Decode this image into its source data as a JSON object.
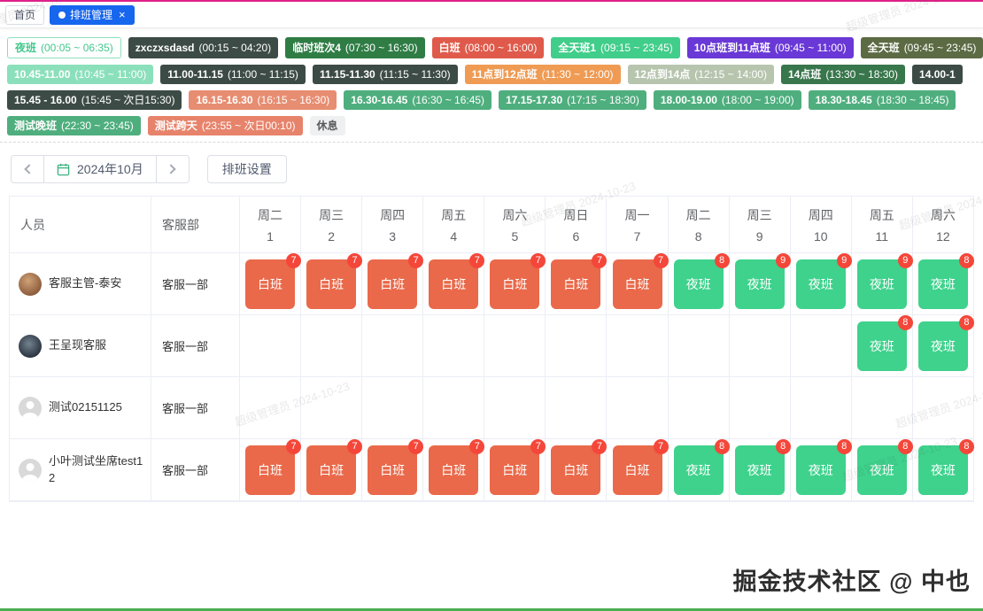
{
  "colors": {
    "accent_top": "#e0218a",
    "accent_bottom": "#4bae4f",
    "active_tab": "#1766ee",
    "day_shift_bg": "#e9694a",
    "night_shift_bg": "#3ed28c",
    "count_badge_bg": "#f4473a"
  },
  "icons": {
    "close": "×"
  },
  "tabs": [
    {
      "label": "首页"
    },
    {
      "label": "排班管理"
    }
  ],
  "shift_legend": {
    "rows": [
      [
        {
          "name": "夜班",
          "time": "(00:05 ~ 06:35)",
          "bg": "#ffffff",
          "fg": "#42c98c",
          "border": "#8ce0bb"
        },
        {
          "name": "zxczxsdasd",
          "time": "(00:15 ~ 04:20)",
          "bg": "#3d4b46",
          "fg": "#ffffff"
        },
        {
          "name": "临时班次4",
          "time": "(07:30 ~ 16:30)",
          "bg": "#2f7d45",
          "fg": "#ffffff"
        },
        {
          "name": "白班",
          "time": "(08:00 ~ 16:00)",
          "bg": "#df5a4b",
          "fg": "#ffffff"
        },
        {
          "name": "全天班1",
          "time": "(09:15 ~ 23:45)",
          "bg": "#41cd8a",
          "fg": "#ffffff"
        },
        {
          "name": "10点班到11点班",
          "time": "(09:45 ~ 11:00)",
          "bg": "#6a38d6",
          "fg": "#ffffff"
        },
        {
          "name": "全天班",
          "time": "(09:45 ~ 23:45)",
          "bg": "#5c6b44",
          "fg": "#ffffff"
        }
      ],
      [
        {
          "name": "10.45-11.00",
          "time": "(10:45 ~ 11:00)",
          "bg": "#8be0bb",
          "fg": "#ffffff"
        },
        {
          "name": "11.00-11.15",
          "time": "(11:00 ~ 11:15)",
          "bg": "#3d4b46",
          "fg": "#ffffff"
        },
        {
          "name": "11.15-11.30",
          "time": "(11:15 ~ 11:30)",
          "bg": "#3d4b46",
          "fg": "#ffffff"
        },
        {
          "name": "11点到12点班",
          "time": "(11:30 ~ 12:00)",
          "bg": "#ef9b54",
          "fg": "#ffffff"
        },
        {
          "name": "12点到14点",
          "time": "(12:15 ~ 14:00)",
          "bg": "#b7c5ae",
          "fg": "#ffffff"
        },
        {
          "name": "14点班",
          "time": "(13:30 ~ 18:30)",
          "bg": "#38764b",
          "fg": "#ffffff"
        },
        {
          "name": "14.00-1",
          "time": "",
          "bg": "#3d4b46",
          "fg": "#ffffff"
        }
      ],
      [
        {
          "name": "15.45 - 16.00",
          "time": "(15:45 ~ 次日15:30)",
          "bg": "#3d4b46",
          "fg": "#ffffff"
        },
        {
          "name": "16.15-16.30",
          "time": "(16:15 ~ 16:30)",
          "bg": "#e78d71",
          "fg": "#ffffff"
        },
        {
          "name": "16.30-16.45",
          "time": "(16:30 ~ 16:45)",
          "bg": "#4fae7e",
          "fg": "#ffffff"
        },
        {
          "name": "17.15-17.30",
          "time": "(17:15 ~ 18:30)",
          "bg": "#4fae7e",
          "fg": "#ffffff"
        },
        {
          "name": "18.00-19.00",
          "time": "(18:00 ~ 19:00)",
          "bg": "#4fae7e",
          "fg": "#ffffff"
        },
        {
          "name": "18.30-18.45",
          "time": "(18:30 ~ 18:45)",
          "bg": "#4fae7e",
          "fg": "#ffffff"
        }
      ],
      [
        {
          "name": "测试晚班",
          "time": "(22:30 ~ 23:45)",
          "bg": "#4fae7e",
          "fg": "#ffffff"
        },
        {
          "name": "测试跨天",
          "time": "(23:55 ~ 次日00:10)",
          "bg": "#e7836b",
          "fg": "#ffffff"
        },
        {
          "name": "休息",
          "time": "",
          "bg": "#eef0f2",
          "fg": "#5a5a5a"
        }
      ]
    ]
  },
  "toolbar": {
    "month": "2024年10月",
    "settings": "排班设置"
  },
  "schedule": {
    "person_header": "人员",
    "department_header": "客服部",
    "days": [
      {
        "weekday": "周二",
        "date": "1"
      },
      {
        "weekday": "周三",
        "date": "2"
      },
      {
        "weekday": "周四",
        "date": "3"
      },
      {
        "weekday": "周五",
        "date": "4"
      },
      {
        "weekday": "周六",
        "date": "5"
      },
      {
        "weekday": "周日",
        "date": "6"
      },
      {
        "weekday": "周一",
        "date": "7"
      },
      {
        "weekday": "周二",
        "date": "8"
      },
      {
        "weekday": "周三",
        "date": "9"
      },
      {
        "weekday": "周四",
        "date": "10"
      },
      {
        "weekday": "周五",
        "date": "11"
      },
      {
        "weekday": "周六",
        "date": "12"
      }
    ],
    "rows": [
      {
        "name": "客服主管-泰安",
        "department": "客服一部",
        "avatar": "photo-a",
        "shifts": [
          {
            "label": "白班",
            "type": "day",
            "count": "7"
          },
          {
            "label": "白班",
            "type": "day",
            "count": "7"
          },
          {
            "label": "白班",
            "type": "day",
            "count": "7"
          },
          {
            "label": "白班",
            "type": "day",
            "count": "7"
          },
          {
            "label": "白班",
            "type": "day",
            "count": "7"
          },
          {
            "label": "白班",
            "type": "day",
            "count": "7"
          },
          {
            "label": "白班",
            "type": "day",
            "count": "7"
          },
          {
            "label": "夜班",
            "type": "night",
            "count": "8"
          },
          {
            "label": "夜班",
            "type": "night",
            "count": "9"
          },
          {
            "label": "夜班",
            "type": "night",
            "count": "9"
          },
          {
            "label": "夜班",
            "type": "night",
            "count": "9"
          },
          {
            "label": "夜班",
            "type": "night",
            "count": "8"
          }
        ]
      },
      {
        "name": "王呈现客服",
        "department": "客服一部",
        "avatar": "photo-b",
        "shifts": [
          null,
          null,
          null,
          null,
          null,
          null,
          null,
          null,
          null,
          null,
          {
            "label": "夜班",
            "type": "night",
            "count": "8"
          },
          {
            "label": "夜班",
            "type": "night",
            "count": "8"
          }
        ]
      },
      {
        "name": "测试02151125",
        "department": "客服一部",
        "avatar": "default",
        "shifts": [
          null,
          null,
          null,
          null,
          null,
          null,
          null,
          null,
          null,
          null,
          null,
          null
        ]
      },
      {
        "name": "小叶测试坐席test12",
        "department": "客服一部",
        "avatar": "default",
        "shifts": [
          {
            "label": "白班",
            "type": "day",
            "count": "7"
          },
          {
            "label": "白班",
            "type": "day",
            "count": "7"
          },
          {
            "label": "白班",
            "type": "day",
            "count": "7"
          },
          {
            "label": "白班",
            "type": "day",
            "count": "7"
          },
          {
            "label": "白班",
            "type": "day",
            "count": "7"
          },
          {
            "label": "白班",
            "type": "day",
            "count": "7"
          },
          {
            "label": "白班",
            "type": "day",
            "count": "7"
          },
          {
            "label": "夜班",
            "type": "night",
            "count": "8"
          },
          {
            "label": "夜班",
            "type": "night",
            "count": "8"
          },
          {
            "label": "夜班",
            "type": "night",
            "count": "8"
          },
          {
            "label": "夜班",
            "type": "night",
            "count": "8"
          },
          {
            "label": "夜班",
            "type": "night",
            "count": "8"
          }
        ]
      }
    ]
  },
  "watermark": {
    "text": "超级管理员 2024-10-23",
    "credit": "掘金技术社区 @ 中也"
  }
}
